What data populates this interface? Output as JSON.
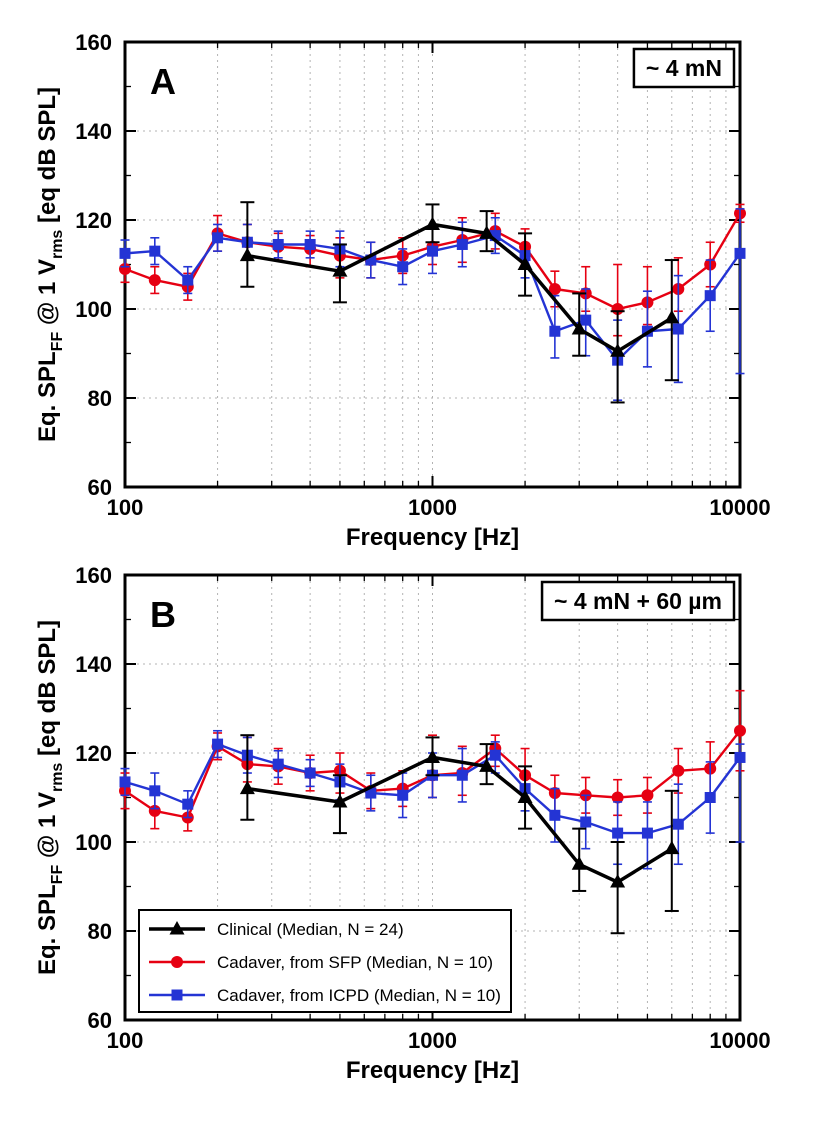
{
  "page": {
    "background": "#ffffff"
  },
  "colors": {
    "clinical": "#000000",
    "sfp_red": "#e60012",
    "icpd_blue": "#2434d4",
    "grid": "#b3b3b3",
    "frame": "#000000"
  },
  "chart_data": [
    {
      "id": "A",
      "type": "line",
      "panel_label": "A",
      "annotation": "~ 4 mN",
      "xlabel": "Frequency [Hz]",
      "ylabel": "Eq. SPL_FF @ 1 V_rms [eq dB SPL]",
      "ylabel_parts": [
        {
          "text": "Eq. SPL"
        },
        {
          "text": "FF",
          "sub": true
        },
        {
          "text": " @ 1 V"
        },
        {
          "text": "rms",
          "sub": true
        },
        {
          "text": " [eq dB SPL]"
        }
      ],
      "xscale": "log",
      "xlim": [
        100,
        10000
      ],
      "ylim": [
        60,
        160
      ],
      "xticks": [
        100,
        1000,
        10000
      ],
      "xtick_labels": [
        "100",
        "1000",
        "10000"
      ],
      "yticks": [
        60,
        80,
        100,
        120,
        140,
        160
      ],
      "ytick_labels": [
        "60",
        "80",
        "100",
        "120",
        "140",
        "160"
      ],
      "grid": true,
      "legend": {
        "visible": false
      },
      "series": [
        {
          "key": "clinical",
          "name": "Clinical (Median, N = 24)",
          "color": "#000000",
          "marker": "triangle",
          "x": [
            250,
            500,
            1000,
            1500,
            2000,
            3000,
            4000,
            6000
          ],
          "y": [
            112,
            108.5,
            119,
            117,
            110,
            95.5,
            90.5,
            98
          ],
          "err_up": [
            12,
            6,
            4.5,
            5,
            7,
            8,
            9,
            13
          ],
          "err_dn": [
            7,
            7,
            4,
            4,
            7,
            6,
            11.5,
            14
          ]
        },
        {
          "key": "cadaver-sfp",
          "name": "Cadaver, from SFP (Median, N = 10)",
          "color": "#e60012",
          "marker": "circle",
          "x": [
            100,
            125,
            160,
            200,
            250,
            315,
            400,
            500,
            630,
            800,
            1000,
            1250,
            1600,
            2000,
            2500,
            3150,
            4000,
            5000,
            6300,
            8000,
            10000
          ],
          "y": [
            109,
            106.5,
            105,
            117,
            115,
            114,
            113.5,
            112,
            111,
            112,
            114,
            115.5,
            117.5,
            114,
            104.5,
            103.5,
            100,
            101.5,
            104.5,
            110,
            121.5
          ],
          "err_up": [
            3,
            3,
            3,
            4,
            4,
            3,
            3,
            4,
            4,
            4,
            4,
            5,
            4,
            4,
            4,
            6,
            10,
            8,
            7,
            5,
            2
          ],
          "err_dn": [
            3,
            3,
            3,
            4,
            4,
            3,
            4,
            5,
            4,
            4,
            4,
            5,
            4,
            4,
            4,
            4,
            6,
            5,
            5,
            5,
            2
          ]
        },
        {
          "key": "cadaver-icpd",
          "name": "Cadaver, from ICPD (Median, N = 10)",
          "color": "#2434d4",
          "marker": "square",
          "x": [
            100,
            125,
            160,
            200,
            250,
            315,
            400,
            500,
            630,
            800,
            1000,
            1250,
            1600,
            2000,
            2500,
            3150,
            4000,
            5000,
            6300,
            8000,
            10000
          ],
          "y": [
            112.5,
            113,
            106.5,
            116,
            115,
            114.5,
            114.5,
            113.5,
            111,
            109.5,
            113,
            114.5,
            116.5,
            112,
            95,
            97.5,
            88.5,
            95,
            95.5,
            103,
            112.5
          ],
          "err_up": [
            3,
            3,
            3,
            3,
            4,
            3,
            3,
            4,
            4,
            4,
            5,
            5,
            4,
            5,
            8,
            7,
            9,
            9,
            12,
            8,
            10
          ],
          "err_dn": [
            3,
            3,
            3,
            3,
            4,
            3,
            3,
            4,
            4,
            4,
            5,
            5,
            4,
            5,
            6,
            8,
            9,
            8,
            12,
            8,
            27
          ]
        }
      ]
    },
    {
      "id": "B",
      "type": "line",
      "panel_label": "B",
      "annotation": "~ 4 mN + 60 µm",
      "xlabel": "Frequency [Hz]",
      "ylabel": "Eq. SPL_FF @ 1 V_rms [eq dB SPL]",
      "ylabel_parts": [
        {
          "text": "Eq. SPL"
        },
        {
          "text": "FF",
          "sub": true
        },
        {
          "text": " @ 1 V"
        },
        {
          "text": "rms",
          "sub": true
        },
        {
          "text": " [eq dB SPL]"
        }
      ],
      "xscale": "log",
      "xlim": [
        100,
        10000
      ],
      "ylim": [
        60,
        160
      ],
      "xticks": [
        100,
        1000,
        10000
      ],
      "xtick_labels": [
        "100",
        "1000",
        "10000"
      ],
      "yticks": [
        60,
        80,
        100,
        120,
        140,
        160
      ],
      "ytick_labels": [
        "60",
        "80",
        "100",
        "120",
        "140",
        "160"
      ],
      "grid": true,
      "legend": {
        "visible": true,
        "position": "bottom-left"
      },
      "series": [
        {
          "key": "clinical",
          "name": "Clinical (Median, N = 24)",
          "color": "#000000",
          "marker": "triangle",
          "x": [
            250,
            500,
            1000,
            1500,
            2000,
            3000,
            4000,
            6000
          ],
          "y": [
            112,
            109,
            119,
            117,
            110,
            95,
            91,
            98.5
          ],
          "err_up": [
            12,
            6,
            4.5,
            5,
            7,
            8,
            9,
            13
          ],
          "err_dn": [
            7,
            7,
            4,
            4,
            7,
            6,
            11.5,
            14
          ]
        },
        {
          "key": "cadaver-sfp",
          "name": "Cadaver, from SFP (Median, N = 10)",
          "color": "#e60012",
          "marker": "circle",
          "x": [
            100,
            125,
            160,
            200,
            250,
            315,
            400,
            500,
            630,
            800,
            1000,
            1250,
            1600,
            2000,
            2500,
            3150,
            4000,
            5000,
            6300,
            8000,
            10000
          ],
          "y": [
            111.5,
            107,
            105.5,
            121.5,
            117.5,
            117,
            115.5,
            116,
            111.5,
            112,
            115,
            115.5,
            121,
            115,
            111,
            110.5,
            110,
            110.5,
            116,
            116.5,
            125
          ],
          "err_up": [
            4,
            4,
            3,
            3,
            6,
            4,
            4,
            4,
            4,
            4,
            9,
            6,
            3,
            6,
            4,
            4,
            4,
            4,
            5,
            6,
            9
          ],
          "err_dn": [
            4,
            4,
            3,
            3,
            4,
            4,
            4,
            5,
            4,
            4,
            5,
            5,
            4,
            5,
            4,
            4,
            4,
            4,
            5,
            6,
            9
          ]
        },
        {
          "key": "cadaver-icpd",
          "name": "Cadaver, from ICPD (Median, N = 10)",
          "color": "#2434d4",
          "marker": "square",
          "x": [
            100,
            125,
            160,
            200,
            250,
            315,
            400,
            500,
            630,
            800,
            1000,
            1250,
            1600,
            2000,
            2500,
            3150,
            4000,
            5000,
            6300,
            8000,
            10000
          ],
          "y": [
            113.5,
            111.5,
            108.5,
            122,
            119.5,
            117.5,
            115.5,
            113.5,
            111,
            110.5,
            115,
            115,
            119.5,
            112,
            106,
            104.5,
            102,
            102,
            104,
            110,
            119
          ],
          "err_up": [
            3,
            4,
            3,
            3,
            4,
            3,
            3,
            4,
            4,
            5,
            5,
            6,
            3,
            5,
            6,
            6,
            7,
            7,
            9,
            8,
            3
          ],
          "err_dn": [
            3,
            4,
            3,
            3,
            4,
            3,
            3,
            4,
            4,
            5,
            5,
            6,
            4,
            5,
            6,
            6,
            7,
            8,
            9,
            8,
            19
          ]
        }
      ]
    }
  ]
}
